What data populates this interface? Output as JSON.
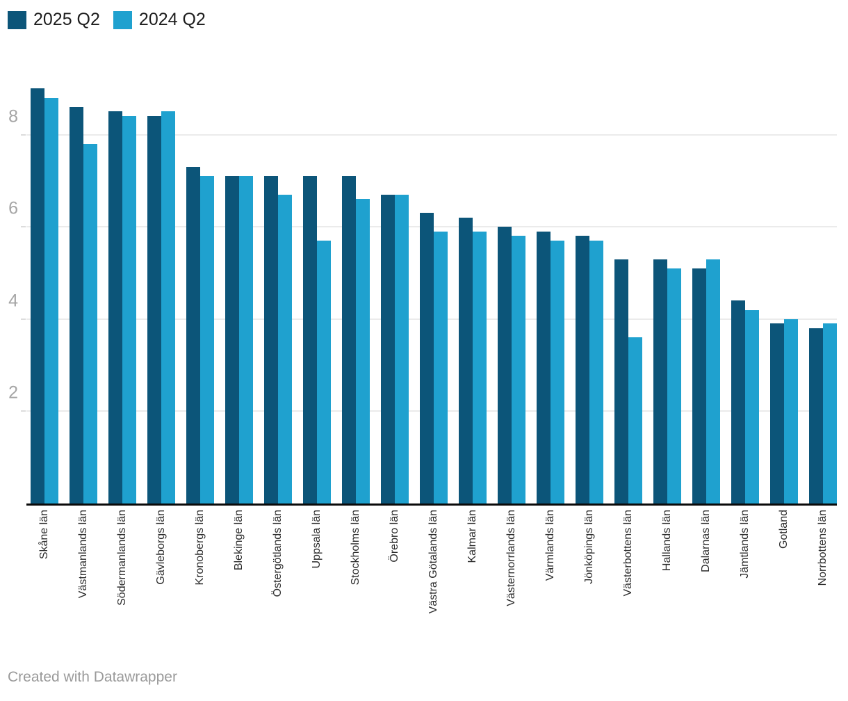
{
  "legend": {
    "items": [
      {
        "label": "2025 Q2",
        "color": "#0c5579"
      },
      {
        "label": "2024 Q2",
        "color": "#1fa1cf"
      }
    ]
  },
  "footer": {
    "credit": "Created with Datawrapper"
  },
  "chart_data": {
    "type": "bar",
    "orientation": "vertical",
    "grouped": true,
    "title": "",
    "xlabel": "",
    "ylabel": "",
    "categories": [
      "Skåne län",
      "Västmanlands län",
      "Södermanlands län",
      "Gävleborgs län",
      "Kronobergs län",
      "Blekinge län",
      "Östergötlands län",
      "Uppsala län",
      "Stockholms län",
      "Örebro län",
      "Västra Götalands län",
      "Kalmar län",
      "Västernorrlands län",
      "Värmlands län",
      "Jönköpings län",
      "Västerbottens län",
      "Hallands län",
      "Dalarnas län",
      "Jämtlands län",
      "Gotland",
      "Norrbottens län"
    ],
    "series": [
      {
        "name": "2025 Q2",
        "color": "#0c5579",
        "values": [
          9.0,
          8.6,
          8.5,
          8.4,
          7.3,
          7.1,
          7.1,
          7.1,
          7.1,
          6.7,
          6.3,
          6.2,
          6.0,
          5.9,
          5.8,
          5.3,
          5.3,
          5.1,
          4.4,
          3.9,
          3.8
        ]
      },
      {
        "name": "2024 Q2",
        "color": "#1fa1cf",
        "values": [
          8.8,
          7.8,
          8.4,
          8.5,
          7.1,
          7.1,
          6.7,
          5.7,
          6.6,
          6.7,
          5.9,
          5.9,
          5.8,
          5.7,
          5.7,
          3.6,
          5.1,
          5.3,
          4.2,
          4.0,
          3.9
        ]
      }
    ],
    "y_ticks": [
      2,
      4,
      6,
      8
    ],
    "ylim": [
      0,
      9.02
    ],
    "grid": "horizontal",
    "legend_position": "top-left"
  }
}
